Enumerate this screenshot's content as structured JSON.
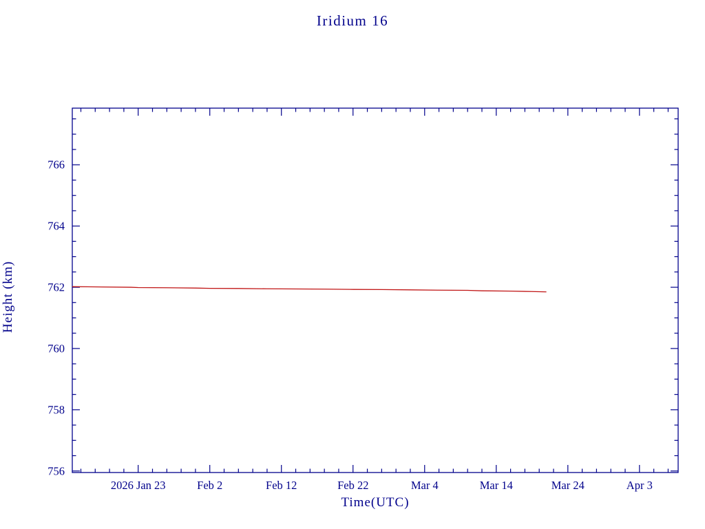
{
  "page": {
    "background": "#ffffff"
  },
  "chart_data": {
    "type": "line",
    "title": "Iridium 16",
    "xlabel": "Time(UTC)",
    "ylabel": "Height (km)",
    "axis_color": "#00008b",
    "line_color": "#c01414",
    "grid": false,
    "legend": "none",
    "x_axis": {
      "unit": "days relative to 2026 Jan 23",
      "domain": [
        -9.2,
        75.4
      ],
      "major_ticks": [
        {
          "d": 0,
          "label": "2026 Jan 23"
        },
        {
          "d": 10,
          "label": "Feb 2"
        },
        {
          "d": 20,
          "label": "Feb 12"
        },
        {
          "d": 30,
          "label": "Feb 22"
        },
        {
          "d": 40,
          "label": "Mar 4"
        },
        {
          "d": 50,
          "label": "Mar 14"
        },
        {
          "d": 60,
          "label": "Mar 24"
        },
        {
          "d": 70,
          "label": "Apr 3"
        }
      ],
      "minor_step": 2
    },
    "y_axis": {
      "unit": "km",
      "domain": [
        755.95,
        767.85
      ],
      "major_ticks": [
        {
          "v": 756,
          "label": "756"
        },
        {
          "v": 758,
          "label": "758"
        },
        {
          "v": 760,
          "label": "760"
        },
        {
          "v": 762,
          "label": "762"
        },
        {
          "v": 764,
          "label": "764"
        },
        {
          "v": 766,
          "label": "766"
        }
      ],
      "minor_step": 0.5
    },
    "series": [
      {
        "name": "height",
        "color": "#c01414",
        "points": [
          [
            -9.2,
            762.02
          ],
          [
            -5.0,
            762.01
          ],
          [
            -1.0,
            762.0
          ],
          [
            0.0,
            761.99
          ],
          [
            4.0,
            761.985
          ],
          [
            8.0,
            761.975
          ],
          [
            10.0,
            761.965
          ],
          [
            14.0,
            761.96
          ],
          [
            18.0,
            761.95
          ],
          [
            22.0,
            761.945
          ],
          [
            26.0,
            761.94
          ],
          [
            30.0,
            761.93
          ],
          [
            34.0,
            761.925
          ],
          [
            38.0,
            761.915
          ],
          [
            42.0,
            761.905
          ],
          [
            46.0,
            761.9
          ],
          [
            48.0,
            761.885
          ],
          [
            52.0,
            761.875
          ],
          [
            55.0,
            761.86
          ],
          [
            57.0,
            761.85
          ]
        ]
      }
    ]
  },
  "labels": {
    "title": "Iridium 16",
    "ylabel": "Height (km)",
    "xlabel": "Time(UTC)"
  }
}
